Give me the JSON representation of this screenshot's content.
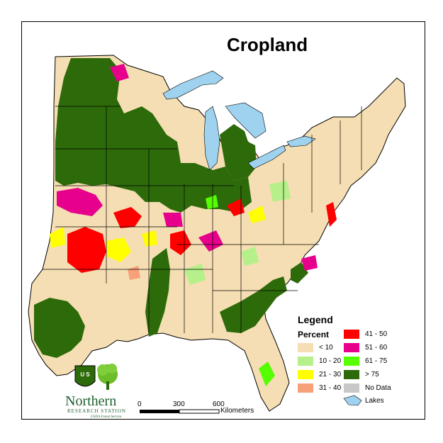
{
  "title": "Cropland",
  "legend": {
    "title": "Legend",
    "subtitle": "Percent",
    "items": [
      {
        "label": "< 10",
        "color": "#f5deb3"
      },
      {
        "label": "10 - 20",
        "color": "#b5f08a"
      },
      {
        "label": "21 - 30",
        "color": "#ffff00"
      },
      {
        "label": "31 - 40",
        "color": "#f7a17a"
      },
      {
        "label": "41 - 50",
        "color": "#ff0000"
      },
      {
        "label": "51 - 60",
        "color": "#e6008c"
      },
      {
        "label": "61 - 75",
        "color": "#55ff00"
      },
      {
        "label": "> 75",
        "color": "#2d6a0a"
      },
      {
        "label": "No Data",
        "color": "#c8c8c8"
      }
    ],
    "lakes_label": "Lakes",
    "lakes_color": "#9fd2ee"
  },
  "scale_bar": {
    "ticks": [
      "0",
      "300",
      "600"
    ],
    "unit": "Kilometers"
  },
  "logo": {
    "line1": "Northern",
    "line2": "RESEARCH STATION",
    "line3": "USDA Forest Service",
    "shield_text": "U S"
  }
}
